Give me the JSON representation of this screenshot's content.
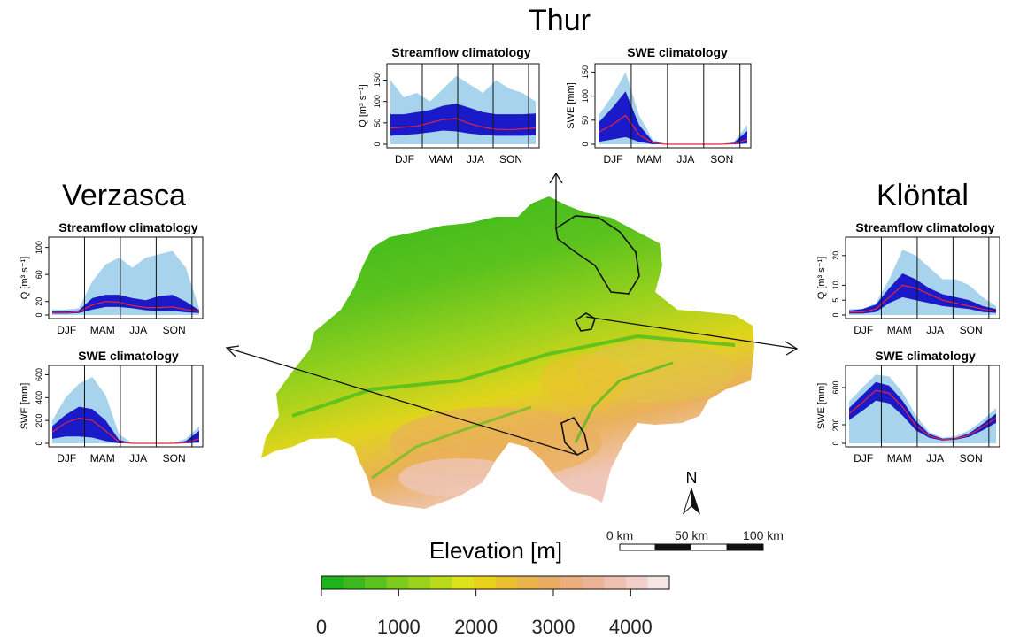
{
  "catchments": {
    "thur": {
      "title": "Thur"
    },
    "verzasca": {
      "title": "Verzasca"
    },
    "klontal": {
      "title": "Klöntal"
    }
  },
  "legend": {
    "elevation_title": "Elevation [m]",
    "ticks": [
      "0",
      "1000",
      "2000",
      "3000",
      "4000"
    ],
    "range": [
      0,
      4500
    ],
    "colors": [
      "#1db31d",
      "#3cba1d",
      "#5cc21d",
      "#7ccb1d",
      "#9bd21d",
      "#bada1d",
      "#dde21b",
      "#e9d21c",
      "#e9c12f",
      "#e9b448",
      "#eaab62",
      "#ebae7d",
      "#ecb496",
      "#eec0b0",
      "#f1d0cc",
      "#f4e6e4"
    ]
  },
  "scalebar": {
    "labels": [
      "0 km",
      "50 km",
      "100 km"
    ]
  },
  "north": {
    "label": "N"
  },
  "chart_data": [
    {
      "type": "area",
      "panel": "thur-streamflow",
      "title": "Streamflow climatology",
      "ylabel": "Q [m³ s⁻¹]",
      "yticks": [
        "0",
        "50",
        "100",
        "150"
      ],
      "ylim": [
        0,
        180
      ],
      "xticks": [
        "DJF",
        "MAM",
        "JJA",
        "SON"
      ],
      "series": [
        {
          "name": "max",
          "values": [
            150,
            110,
            120,
            100,
            130,
            160,
            140,
            120,
            150,
            130,
            120,
            100
          ]
        },
        {
          "name": "q90",
          "values": [
            70,
            70,
            75,
            80,
            90,
            95,
            85,
            75,
            70,
            70,
            70,
            72
          ]
        },
        {
          "name": "q10",
          "values": [
            20,
            22,
            24,
            28,
            32,
            30,
            25,
            22,
            20,
            20,
            20,
            21
          ]
        },
        {
          "name": "median",
          "values": [
            38,
            40,
            42,
            50,
            58,
            60,
            48,
            40,
            35,
            34,
            36,
            38
          ]
        }
      ]
    },
    {
      "type": "area",
      "panel": "thur-swe",
      "title": "SWE climatology",
      "ylabel": "SWE [mm]",
      "yticks": [
        "0",
        "50",
        "100",
        "150"
      ],
      "ylim": [
        0,
        160
      ],
      "xticks": [
        "DJF",
        "MAM",
        "JJA",
        "SON"
      ],
      "series": [
        {
          "name": "max",
          "values": [
            60,
            100,
            150,
            60,
            10,
            0,
            0,
            0,
            0,
            0,
            5,
            40
          ]
        },
        {
          "name": "q90",
          "values": [
            45,
            75,
            110,
            40,
            6,
            0,
            0,
            0,
            0,
            0,
            3,
            28
          ]
        },
        {
          "name": "q10",
          "values": [
            5,
            10,
            15,
            5,
            0,
            0,
            0,
            0,
            0,
            0,
            0,
            2
          ]
        },
        {
          "name": "median",
          "values": [
            25,
            40,
            60,
            20,
            3,
            0,
            0,
            0,
            0,
            0,
            1,
            10
          ]
        }
      ]
    },
    {
      "type": "area",
      "panel": "verzasca-streamflow",
      "title": "Streamflow climatology",
      "ylabel": "Q [m³ s⁻¹]",
      "yticks": [
        "0",
        "20",
        "60",
        "100"
      ],
      "ylim": [
        0,
        110
      ],
      "xticks": [
        "DJF",
        "MAM",
        "JJA",
        "SON"
      ],
      "series": [
        {
          "name": "max",
          "values": [
            8,
            8,
            10,
            50,
            75,
            85,
            70,
            85,
            90,
            95,
            70,
            10
          ]
        },
        {
          "name": "q90",
          "values": [
            5,
            5,
            7,
            25,
            30,
            30,
            25,
            22,
            28,
            30,
            20,
            7
          ]
        },
        {
          "name": "q10",
          "values": [
            2,
            2,
            3,
            8,
            12,
            12,
            10,
            7,
            6,
            6,
            4,
            3
          ]
        },
        {
          "name": "median",
          "values": [
            3,
            3,
            5,
            15,
            20,
            19,
            14,
            11,
            11,
            12,
            8,
            5
          ]
        }
      ]
    },
    {
      "type": "area",
      "panel": "verzasca-swe",
      "title": "SWE climatology",
      "ylabel": "SWE [mm]",
      "yticks": [
        "0",
        "200",
        "400",
        "600"
      ],
      "ylim": [
        0,
        650
      ],
      "xticks": [
        "DJF",
        "MAM",
        "JJA",
        "SON"
      ],
      "series": [
        {
          "name": "max",
          "values": [
            200,
            400,
            520,
            580,
            420,
            80,
            0,
            0,
            0,
            0,
            40,
            150
          ]
        },
        {
          "name": "q90",
          "values": [
            150,
            250,
            320,
            300,
            200,
            30,
            0,
            0,
            0,
            0,
            20,
            110
          ]
        },
        {
          "name": "q10",
          "values": [
            40,
            60,
            60,
            50,
            20,
            0,
            0,
            0,
            0,
            0,
            0,
            10
          ]
        },
        {
          "name": "median",
          "values": [
            100,
            180,
            220,
            200,
            110,
            10,
            0,
            0,
            0,
            0,
            5,
            40
          ]
        }
      ]
    },
    {
      "type": "area",
      "panel": "klontal-streamflow",
      "title": "Streamflow climatology",
      "ylabel": "Q [m³ s⁻¹]",
      "yticks": [
        "0",
        "5",
        "10",
        "20"
      ],
      "ylim": [
        0,
        25
      ],
      "xticks": [
        "DJF",
        "MAM",
        "JJA",
        "SON"
      ],
      "series": [
        {
          "name": "max",
          "values": [
            2,
            2,
            4,
            12,
            22,
            20,
            16,
            12,
            12,
            10,
            6,
            3
          ]
        },
        {
          "name": "q90",
          "values": [
            1.5,
            2,
            3.5,
            9,
            14,
            12,
            9,
            7,
            6,
            5,
            3,
            2
          ]
        },
        {
          "name": "q10",
          "values": [
            0.5,
            0.5,
            1,
            4,
            6,
            5,
            4,
            3,
            2.5,
            2,
            1,
            0.7
          ]
        },
        {
          "name": "median",
          "values": [
            1,
            1,
            2,
            6,
            10,
            9,
            7,
            5,
            4,
            3,
            2,
            1.2
          ]
        }
      ]
    },
    {
      "type": "area",
      "panel": "klontal-swe",
      "title": "SWE climatology",
      "ylabel": "SWE [mm]",
      "yticks": [
        "0",
        "200",
        "600"
      ],
      "ylim": [
        0,
        800
      ],
      "xticks": [
        "DJF",
        "MAM",
        "JJA",
        "SON"
      ],
      "series": [
        {
          "name": "max",
          "values": [
            450,
            600,
            740,
            720,
            550,
            300,
            120,
            60,
            80,
            140,
            250,
            380
          ]
        },
        {
          "name": "q90",
          "values": [
            380,
            520,
            660,
            620,
            460,
            240,
            100,
            50,
            60,
            110,
            210,
            320
          ]
        },
        {
          "name": "q10",
          "values": [
            250,
            350,
            460,
            430,
            300,
            140,
            60,
            30,
            40,
            70,
            140,
            220
          ]
        },
        {
          "name": "median",
          "values": [
            320,
            440,
            570,
            540,
            390,
            190,
            80,
            40,
            50,
            90,
            180,
            270
          ]
        }
      ]
    }
  ]
}
